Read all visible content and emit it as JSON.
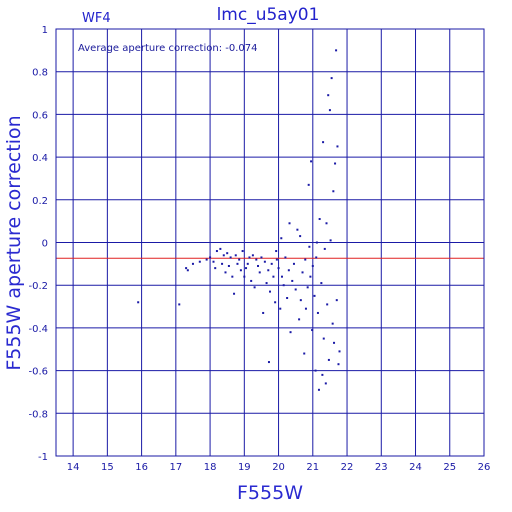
{
  "chart_data": {
    "type": "scatter",
    "title": "lmc_u5ay01",
    "chip_label": "WF4",
    "annotation": "Average aperture correction: -0.074",
    "xlabel": "F555W",
    "ylabel": "F555W aperture correction",
    "xlim": [
      13.5,
      26
    ],
    "ylim": [
      -1,
      1
    ],
    "xticks": [
      14,
      15,
      16,
      17,
      18,
      19,
      20,
      21,
      22,
      23,
      24,
      25,
      26
    ],
    "yticks": [
      -1,
      -0.8,
      -0.6,
      -0.4,
      -0.2,
      0,
      0.2,
      0.4,
      0.6,
      0.8,
      1
    ],
    "grid": true,
    "reference_line": {
      "y": -0.074
    },
    "colors": {
      "axes": "#1a1aa6",
      "points": "#1a1aa6",
      "reference_line": "#e02020"
    },
    "points": [
      [
        15.9,
        -0.28
      ],
      [
        17.1,
        -0.29
      ],
      [
        17.3,
        -0.12
      ],
      [
        17.35,
        -0.13
      ],
      [
        17.5,
        -0.1
      ],
      [
        17.7,
        -0.09
      ],
      [
        17.9,
        -0.08
      ],
      [
        18.0,
        -0.07
      ],
      [
        18.1,
        -0.09
      ],
      [
        18.15,
        -0.12
      ],
      [
        18.2,
        -0.04
      ],
      [
        18.3,
        -0.03
      ],
      [
        18.35,
        -0.1
      ],
      [
        18.4,
        -0.06
      ],
      [
        18.45,
        -0.14
      ],
      [
        18.5,
        -0.05
      ],
      [
        18.55,
        -0.11
      ],
      [
        18.6,
        -0.07
      ],
      [
        18.65,
        -0.16
      ],
      [
        18.7,
        -0.24
      ],
      [
        18.75,
        -0.06
      ],
      [
        18.8,
        -0.1
      ],
      [
        18.85,
        -0.08
      ],
      [
        18.9,
        -0.13
      ],
      [
        18.95,
        -0.04
      ],
      [
        19.0,
        -0.16
      ],
      [
        19.05,
        -0.12
      ],
      [
        19.1,
        -0.1
      ],
      [
        19.15,
        -0.07
      ],
      [
        19.2,
        -0.18
      ],
      [
        19.25,
        -0.06
      ],
      [
        19.3,
        -0.21
      ],
      [
        19.35,
        -0.08
      ],
      [
        19.4,
        -0.11
      ],
      [
        19.45,
        -0.14
      ],
      [
        19.5,
        -0.07
      ],
      [
        19.55,
        -0.33
      ],
      [
        19.6,
        -0.09
      ],
      [
        19.65,
        -0.19
      ],
      [
        19.7,
        -0.13
      ],
      [
        19.72,
        -0.56
      ],
      [
        19.75,
        -0.23
      ],
      [
        19.8,
        -0.1
      ],
      [
        19.85,
        -0.16
      ],
      [
        19.9,
        -0.28
      ],
      [
        19.93,
        -0.04
      ],
      [
        19.95,
        -0.08
      ],
      [
        20.0,
        -0.12
      ],
      [
        20.05,
        -0.31
      ],
      [
        20.08,
        0.02
      ],
      [
        20.1,
        -0.16
      ],
      [
        20.15,
        -0.2
      ],
      [
        20.2,
        -0.07
      ],
      [
        20.25,
        -0.26
      ],
      [
        20.3,
        -0.13
      ],
      [
        20.32,
        0.09
      ],
      [
        20.35,
        -0.42
      ],
      [
        20.4,
        -0.18
      ],
      [
        20.45,
        -0.1
      ],
      [
        20.5,
        -0.22
      ],
      [
        20.55,
        0.06
      ],
      [
        20.6,
        -0.36
      ],
      [
        20.63,
        0.03
      ],
      [
        20.65,
        -0.27
      ],
      [
        20.7,
        -0.14
      ],
      [
        20.75,
        -0.52
      ],
      [
        20.78,
        -0.08
      ],
      [
        20.8,
        -0.31
      ],
      [
        20.85,
        -0.21
      ],
      [
        20.88,
        0.27
      ],
      [
        20.9,
        -0.02
      ],
      [
        20.93,
        -0.16
      ],
      [
        20.95,
        0.38
      ],
      [
        20.98,
        -0.41
      ],
      [
        21.0,
        -0.11
      ],
      [
        21.05,
        -0.25
      ],
      [
        21.08,
        -0.6
      ],
      [
        21.1,
        -0.07
      ],
      [
        21.12,
        0.0
      ],
      [
        21.15,
        -0.33
      ],
      [
        21.18,
        -0.69
      ],
      [
        21.2,
        0.11
      ],
      [
        21.25,
        -0.19
      ],
      [
        21.28,
        -0.62
      ],
      [
        21.3,
        0.47
      ],
      [
        21.32,
        -0.45
      ],
      [
        21.35,
        -0.03
      ],
      [
        21.38,
        -0.66
      ],
      [
        21.4,
        0.09
      ],
      [
        21.42,
        -0.29
      ],
      [
        21.45,
        0.69
      ],
      [
        21.47,
        -0.55
      ],
      [
        21.5,
        0.62
      ],
      [
        21.52,
        0.01
      ],
      [
        21.55,
        0.77
      ],
      [
        21.58,
        -0.38
      ],
      [
        21.6,
        0.24
      ],
      [
        21.62,
        -0.47
      ],
      [
        21.65,
        0.37
      ],
      [
        21.68,
        0.9
      ],
      [
        21.7,
        -0.27
      ],
      [
        21.72,
        0.45
      ],
      [
        21.75,
        -0.57
      ],
      [
        21.78,
        -0.51
      ]
    ]
  }
}
